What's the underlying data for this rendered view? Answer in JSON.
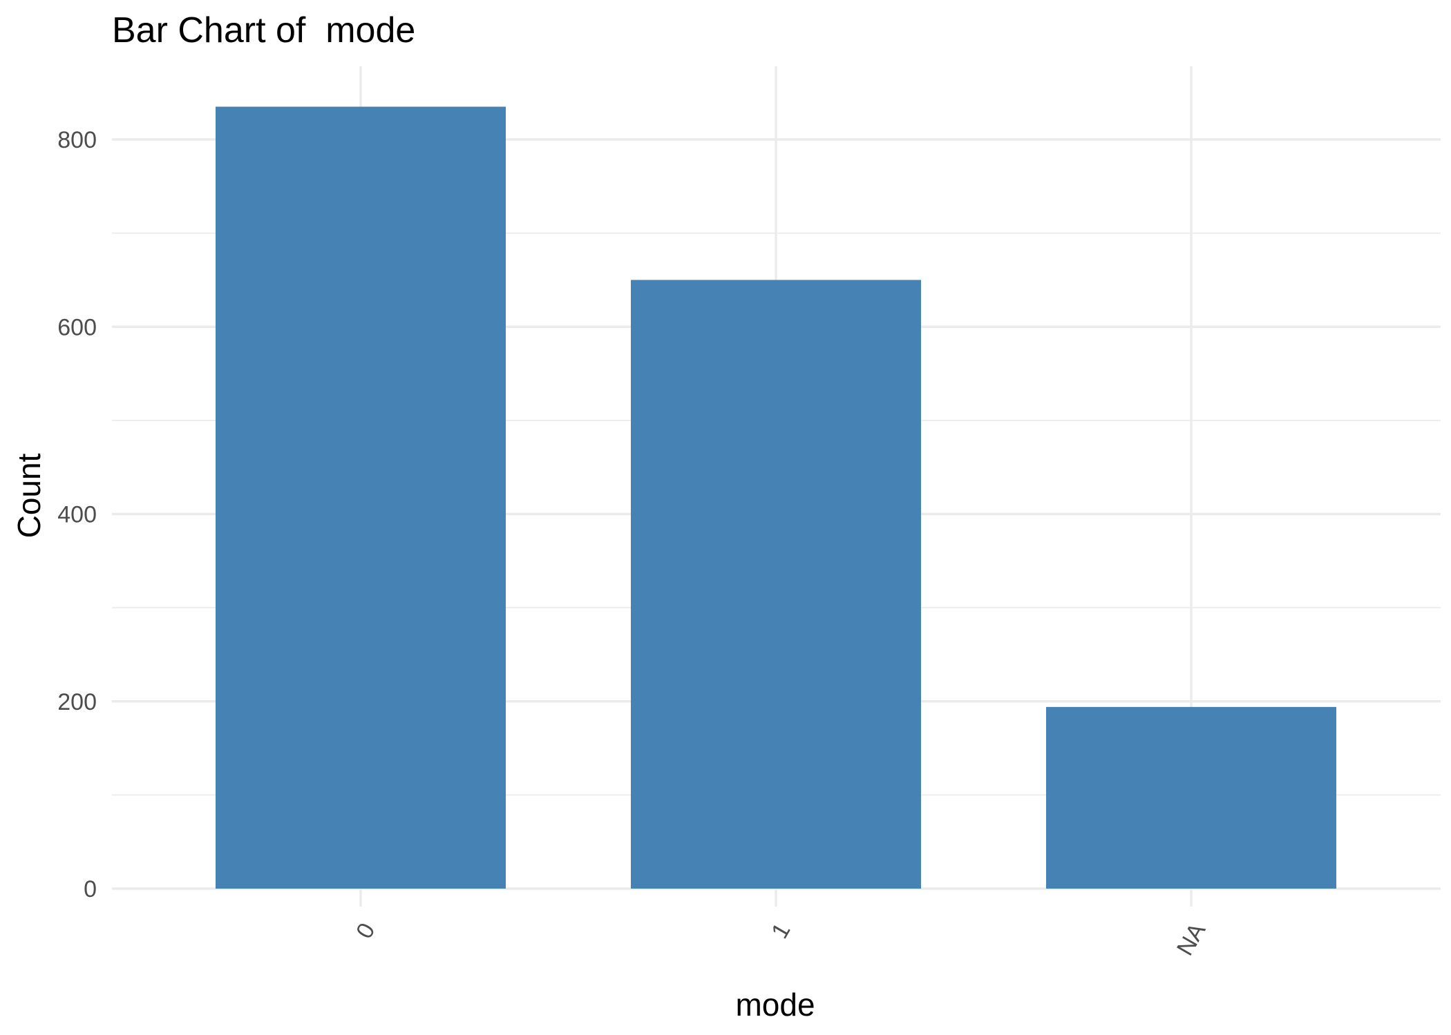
{
  "chart_data": {
    "type": "bar",
    "title": "Bar Chart of  mode",
    "xlabel": "mode",
    "ylabel": "Count",
    "categories": [
      "0",
      "1",
      "NA"
    ],
    "values": [
      835,
      650,
      194
    ],
    "ylim": [
      0,
      880
    ],
    "yticks": [
      0,
      200,
      400,
      600,
      800
    ],
    "grid": true,
    "bar_color": "#4682B4",
    "grid_color": "#EBEBEB",
    "x_tick_rotation_deg": 60
  }
}
